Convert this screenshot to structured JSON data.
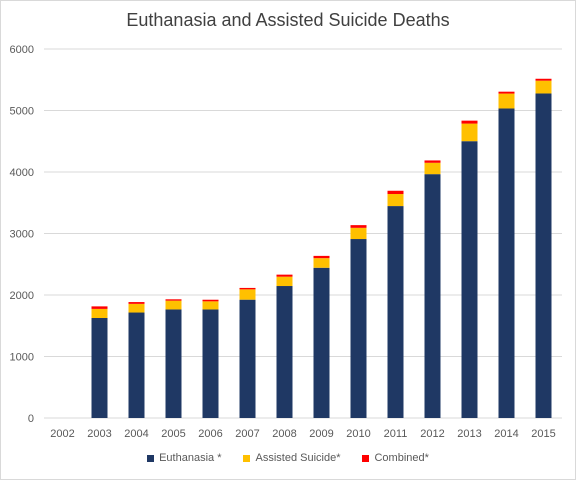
{
  "chart_data": {
    "type": "bar",
    "stacked": true,
    "title": "Euthanasia and Assisted Suicide Deaths",
    "xlabel": "",
    "ylabel": "",
    "ylim": [
      0,
      6000
    ],
    "yticks": [
      0,
      1000,
      2000,
      3000,
      4000,
      5000,
      6000
    ],
    "grid": true,
    "legend_position": "bottom",
    "categories": [
      "2002",
      "2003",
      "2004",
      "2005",
      "2006",
      "2007",
      "2008",
      "2009",
      "2010",
      "2011",
      "2012",
      "2013",
      "2014",
      "2015"
    ],
    "series": [
      {
        "name": "Euthanasia *",
        "color": "#1f3864",
        "values": [
          0,
          1626,
          1715,
          1765,
          1765,
          1924,
          2146,
          2443,
          2910,
          3446,
          3965,
          4501,
          5033,
          5277
        ]
      },
      {
        "name": "Assisted Suicide*",
        "color": "#ffc000",
        "values": [
          0,
          148,
          141,
          143,
          132,
          168,
          152,
          156,
          182,
          196,
          185,
          286,
          242,
          208
        ]
      },
      {
        "name": "Combined*",
        "color": "#ff0000",
        "values": [
          0,
          41,
          29,
          22,
          26,
          23,
          33,
          37,
          44,
          53,
          38,
          48,
          31,
          31
        ]
      }
    ]
  }
}
